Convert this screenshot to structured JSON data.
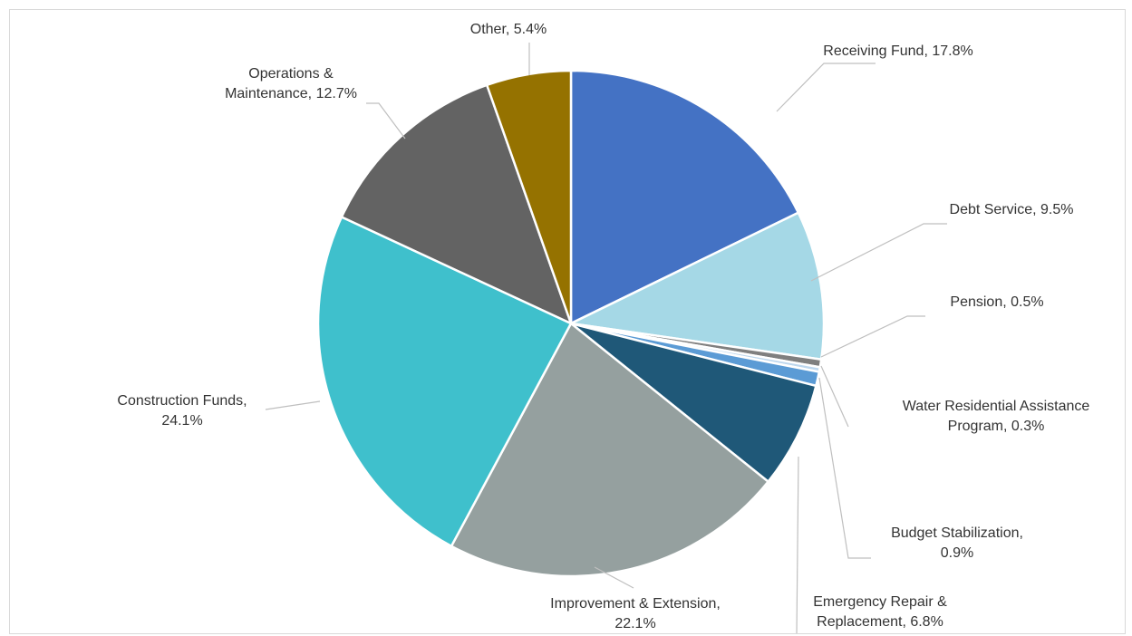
{
  "chart_data": {
    "type": "pie",
    "title": "",
    "slices": [
      {
        "label": "Receiving Fund",
        "value": 17.8,
        "display": "Receiving Fund, 17.8%",
        "lines": [
          "Receiving Fund, 17.8%"
        ],
        "color": "#4472C4"
      },
      {
        "label": "Debt Service",
        "value": 9.5,
        "display": "Debt Service, 9.5%",
        "lines": [
          "Debt Service, 9.5%"
        ],
        "color": "#A5D8E6"
      },
      {
        "label": "Pension",
        "value": 0.5,
        "display": "Pension, 0.5%",
        "lines": [
          "Pension, 0.5%"
        ],
        "color": "#7F7F7F"
      },
      {
        "label": "Water Residential Assistance Program",
        "value": 0.3,
        "display": "Water Residential Assistance Program, 0.3%",
        "lines": [
          "Water Residential Assistance",
          "Program, 0.3%"
        ],
        "color": "#BDD7EE"
      },
      {
        "label": "Budget Stabilization",
        "value": 0.9,
        "display": "Budget Stabilization, 0.9%",
        "lines": [
          "Budget Stabilization,",
          "0.9%"
        ],
        "color": "#5B9BD5"
      },
      {
        "label": "Emergency Repair & Replacement",
        "value": 6.8,
        "display": "Emergency Repair & Replacement, 6.8%",
        "lines": [
          "Emergency Repair &",
          "Replacement, 6.8%"
        ],
        "color": "#1F5878"
      },
      {
        "label": "Improvement & Extension",
        "value": 22.1,
        "display": "Improvement & Extension, 22.1%",
        "lines": [
          "Improvement & Extension,",
          "22.1%"
        ],
        "color": "#95A09F"
      },
      {
        "label": "Construction Funds",
        "value": 24.1,
        "display": "Construction Funds, 24.1%",
        "lines": [
          "Construction Funds,",
          "24.1%"
        ],
        "color": "#3FC0CC"
      },
      {
        "label": "Operations & Maintenance",
        "value": 12.7,
        "display": "Operations & Maintenance, 12.7%",
        "lines": [
          "Operations &",
          "Maintenance, 12.7%"
        ],
        "color": "#636363"
      },
      {
        "label": "Other",
        "value": 5.4,
        "display": "Other, 5.4%",
        "lines": [
          "Other, 5.4%"
        ],
        "color": "#957200"
      }
    ]
  }
}
